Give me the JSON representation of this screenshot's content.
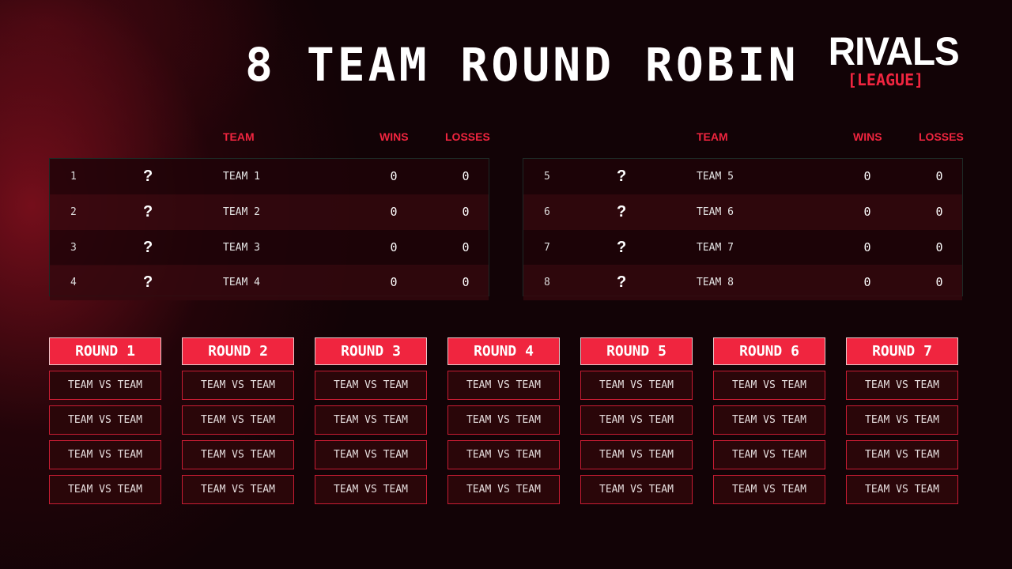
{
  "title": "8 TEAM ROUND ROBIN",
  "logo": {
    "top": "RIVALS",
    "bottom": "[LEAGUE]"
  },
  "accent": "#f0253f",
  "columns": {
    "team": "TEAM",
    "wins": "WINS",
    "losses": "LOSSES"
  },
  "tables": [
    [
      {
        "rank": "1",
        "logo": "?",
        "team": "TEAM 1",
        "wins": "0",
        "losses": "0"
      },
      {
        "rank": "2",
        "logo": "?",
        "team": "TEAM 2",
        "wins": "0",
        "losses": "0"
      },
      {
        "rank": "3",
        "logo": "?",
        "team": "TEAM 3",
        "wins": "0",
        "losses": "0"
      },
      {
        "rank": "4",
        "logo": "?",
        "team": "TEAM 4",
        "wins": "0",
        "losses": "0"
      }
    ],
    [
      {
        "rank": "5",
        "logo": "?",
        "team": "TEAM 5",
        "wins": "0",
        "losses": "0"
      },
      {
        "rank": "6",
        "logo": "?",
        "team": "TEAM 6",
        "wins": "0",
        "losses": "0"
      },
      {
        "rank": "7",
        "logo": "?",
        "team": "TEAM 7",
        "wins": "0",
        "losses": "0"
      },
      {
        "rank": "8",
        "logo": "?",
        "team": "TEAM 8",
        "wins": "0",
        "losses": "0"
      }
    ]
  ],
  "rounds": [
    {
      "label": "ROUND 1",
      "matches": [
        "TEAM VS TEAM",
        "TEAM VS TEAM",
        "TEAM VS TEAM",
        "TEAM VS TEAM"
      ]
    },
    {
      "label": "ROUND 2",
      "matches": [
        "TEAM VS TEAM",
        "TEAM VS TEAM",
        "TEAM VS TEAM",
        "TEAM VS TEAM"
      ]
    },
    {
      "label": "ROUND 3",
      "matches": [
        "TEAM VS TEAM",
        "TEAM VS TEAM",
        "TEAM VS TEAM",
        "TEAM VS TEAM"
      ]
    },
    {
      "label": "ROUND 4",
      "matches": [
        "TEAM VS TEAM",
        "TEAM VS TEAM",
        "TEAM VS TEAM",
        "TEAM VS TEAM"
      ]
    },
    {
      "label": "ROUND 5",
      "matches": [
        "TEAM VS TEAM",
        "TEAM VS TEAM",
        "TEAM VS TEAM",
        "TEAM VS TEAM"
      ]
    },
    {
      "label": "ROUND 6",
      "matches": [
        "TEAM VS TEAM",
        "TEAM VS TEAM",
        "TEAM VS TEAM",
        "TEAM VS TEAM"
      ]
    },
    {
      "label": "ROUND 7",
      "matches": [
        "TEAM VS TEAM",
        "TEAM VS TEAM",
        "TEAM VS TEAM",
        "TEAM VS TEAM"
      ]
    }
  ]
}
